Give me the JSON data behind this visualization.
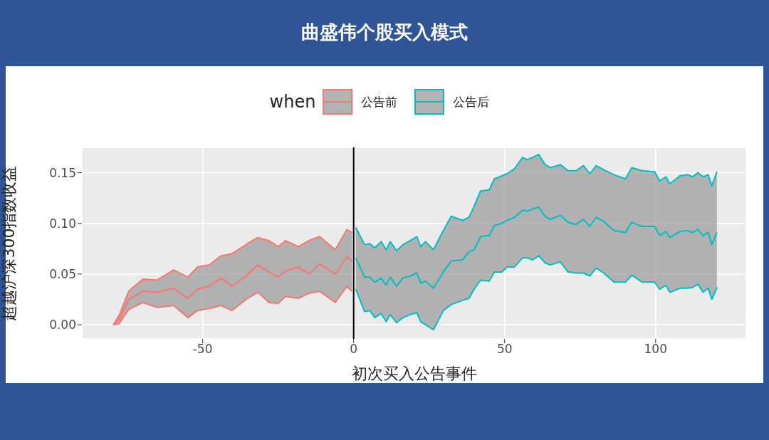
{
  "chart_data": {
    "type": "line",
    "title": "曲盛伟个股买入模式",
    "xlabel": "初次买入公告事件",
    "ylabel": "超越沪深300指数收益",
    "legend_title": "when",
    "legend": "top",
    "grid": true,
    "marker": "none",
    "line_style": "solid",
    "xlim": [
      -90,
      130
    ],
    "xticks": [
      -50,
      0,
      50,
      100
    ],
    "ylim": [
      -0.014,
      0.175
    ],
    "yticks": [
      {
        "value": 0,
        "label": "0.00"
      },
      {
        "value": 0.05,
        "label": "0.05"
      },
      {
        "value": 0.1,
        "label": "0.10"
      },
      {
        "value": 0.15,
        "label": "0.15"
      }
    ],
    "ref_lines": [
      {
        "axis": "x",
        "value": 0,
        "color": "#000000"
      }
    ],
    "series": [
      {
        "name": "公告前",
        "color": "#f8766d",
        "x": [
          -79.6,
          -77.7,
          -74.5,
          -69.8,
          -65.1,
          -59.6,
          -54.9,
          -51.7,
          -47.8,
          -43.9,
          -40.3,
          -35.2,
          -31.7,
          -28.1,
          -25.0,
          -22.6,
          -18.3,
          -14.8,
          -11.3,
          -6.1,
          -2.2,
          -0.6
        ],
        "values": [
          0,
          0.005,
          0.025,
          0.033,
          0.032,
          0.036,
          0.026,
          0.035,
          0.038,
          0.046,
          0.038,
          0.049,
          0.059,
          0.052,
          0.047,
          0.053,
          0.057,
          0.05,
          0.06,
          0.05,
          0.067,
          0.063
        ],
        "upper": [
          0,
          0.009,
          0.033,
          0.045,
          0.044,
          0.054,
          0.047,
          0.057,
          0.059,
          0.068,
          0.07,
          0.08,
          0.086,
          0.083,
          0.077,
          0.083,
          0.077,
          0.083,
          0.087,
          0.074,
          0.094,
          0.091
        ],
        "lower": [
          0,
          0.001,
          0.015,
          0.022,
          0.017,
          0.019,
          0.007,
          0.014,
          0.016,
          0.019,
          0.014,
          0.026,
          0.032,
          0.022,
          0.021,
          0.028,
          0.026,
          0.031,
          0.033,
          0.022,
          0.038,
          0.033
        ]
      },
      {
        "name": "公告后",
        "color": "#00bfc4",
        "x": [
          0.7,
          3.6,
          5.3,
          7.0,
          9.1,
          10.8,
          12.1,
          14.2,
          16.3,
          18.8,
          20.9,
          22.2,
          23.8,
          26.4,
          29.7,
          32.3,
          36.1,
          38.2,
          39.9,
          42.0,
          44.9,
          46.6,
          49.1,
          50.8,
          53.3,
          55.9,
          57.5,
          59.2,
          61.3,
          63.4,
          65.1,
          68.5,
          71.0,
          73.6,
          76.1,
          78.2,
          80.3,
          82.8,
          86.2,
          90.0,
          92.1,
          95.5,
          99.7,
          101.3,
          103.4,
          104.7,
          108.1,
          110.6,
          112.3,
          114.0,
          115.7,
          117.4,
          118.6,
          120.3
        ],
        "values": [
          0.066,
          0.047,
          0.047,
          0.042,
          0.046,
          0.039,
          0.047,
          0.038,
          0.046,
          0.048,
          0.051,
          0.041,
          0.043,
          0.036,
          0.052,
          0.063,
          0.064,
          0.072,
          0.074,
          0.087,
          0.088,
          0.098,
          0.1,
          0.103,
          0.106,
          0.113,
          0.112,
          0.114,
          0.116,
          0.107,
          0.104,
          0.108,
          0.101,
          0.099,
          0.104,
          0.097,
          0.106,
          0.102,
          0.093,
          0.091,
          0.101,
          0.097,
          0.097,
          0.088,
          0.092,
          0.086,
          0.092,
          0.093,
          0.091,
          0.094,
          0.088,
          0.091,
          0.079,
          0.091
        ],
        "upper": [
          0.096,
          0.079,
          0.08,
          0.076,
          0.082,
          0.074,
          0.082,
          0.073,
          0.079,
          0.083,
          0.087,
          0.077,
          0.082,
          0.074,
          0.093,
          0.107,
          0.103,
          0.106,
          0.117,
          0.132,
          0.133,
          0.144,
          0.147,
          0.149,
          0.154,
          0.165,
          0.163,
          0.165,
          0.168,
          0.158,
          0.155,
          0.158,
          0.152,
          0.152,
          0.157,
          0.149,
          0.157,
          0.153,
          0.148,
          0.144,
          0.155,
          0.152,
          0.151,
          0.142,
          0.146,
          0.139,
          0.147,
          0.148,
          0.146,
          0.15,
          0.146,
          0.148,
          0.137,
          0.151
        ],
        "lower": [
          0.035,
          0.013,
          0.014,
          0.007,
          0.011,
          0.003,
          0.01,
          0.002,
          0.007,
          0.01,
          0.012,
          0.003,
          0.0,
          -0.005,
          0.014,
          0.02,
          0.024,
          0.026,
          0.035,
          0.044,
          0.043,
          0.052,
          0.052,
          0.057,
          0.057,
          0.066,
          0.066,
          0.064,
          0.068,
          0.061,
          0.059,
          0.062,
          0.052,
          0.051,
          0.051,
          0.048,
          0.056,
          0.051,
          0.042,
          0.042,
          0.049,
          0.042,
          0.042,
          0.035,
          0.039,
          0.032,
          0.036,
          0.036,
          0.037,
          0.04,
          0.032,
          0.036,
          0.025,
          0.037
        ]
      },
      {
        "type": "line",
        "color": "#f8766d",
        "x": [
          -79.6,
          -77.7,
          -74.5,
          -69.8,
          -65.1,
          -59.6,
          -54.9,
          -51.7,
          -47.8,
          -43.9,
          -40.3,
          -35.2,
          -31.7,
          -28.1,
          -25.0,
          -22.6,
          -18.3,
          -14.8,
          -11.3,
          -6.1,
          -2.2,
          -0.6
        ],
        "values": [
          0,
          0.009,
          0.033,
          0.045,
          0.044,
          0.054,
          0.047,
          0.057,
          0.059,
          0.068,
          0.07,
          0.08,
          0.086,
          0.083,
          0.077,
          0.083,
          0.077,
          0.083,
          0.087,
          0.074,
          0.094,
          0.091
        ]
      },
      {
        "type": "line",
        "color": "#f8766d",
        "x": [
          -79.6,
          -77.7,
          -74.5,
          -69.8,
          -65.1,
          -59.6,
          -54.9,
          -51.7,
          -47.8,
          -43.9,
          -40.3,
          -35.2,
          -31.7,
          -28.1,
          -25.0,
          -22.6,
          -18.3,
          -14.8,
          -11.3,
          -6.1,
          -2.2,
          -0.6
        ],
        "values": [
          0,
          0.001,
          0.015,
          0.022,
          0.017,
          0.019,
          0.007,
          0.014,
          0.016,
          0.019,
          0.014,
          0.026,
          0.032,
          0.022,
          0.021,
          0.028,
          0.026,
          0.031,
          0.033,
          0.022,
          0.038,
          0.033
        ]
      },
      {
        "type": "line",
        "color": "#00bfc4",
        "x": [
          0.7,
          3.6,
          5.3,
          7.0,
          9.1,
          10.8,
          12.1,
          14.2,
          16.3,
          18.8,
          20.9,
          22.2,
          23.8,
          26.4,
          29.7,
          32.3,
          36.1,
          38.2,
          39.9,
          42.0,
          44.9,
          46.6,
          49.1,
          50.8,
          53.3,
          55.9,
          57.5,
          59.2,
          61.3,
          63.4,
          65.1,
          68.5,
          71.0,
          73.6,
          76.1,
          78.2,
          80.3,
          82.8,
          86.2,
          90.0,
          92.1,
          95.5,
          99.7,
          101.3,
          103.4,
          104.7,
          108.1,
          110.6,
          112.3,
          114.0,
          115.7,
          117.4,
          118.6,
          120.3
        ],
        "values": [
          0.096,
          0.079,
          0.08,
          0.076,
          0.082,
          0.074,
          0.082,
          0.073,
          0.079,
          0.083,
          0.087,
          0.077,
          0.082,
          0.074,
          0.093,
          0.107,
          0.103,
          0.106,
          0.117,
          0.132,
          0.133,
          0.144,
          0.147,
          0.149,
          0.154,
          0.165,
          0.163,
          0.165,
          0.168,
          0.158,
          0.155,
          0.158,
          0.152,
          0.152,
          0.157,
          0.149,
          0.157,
          0.153,
          0.148,
          0.144,
          0.155,
          0.152,
          0.151,
          0.142,
          0.146,
          0.139,
          0.147,
          0.148,
          0.146,
          0.15,
          0.146,
          0.148,
          0.137,
          0.151
        ]
      },
      {
        "type": "line",
        "color": "#00bfc4",
        "x": [
          0.7,
          3.6,
          5.3,
          7.0,
          9.1,
          10.8,
          12.1,
          14.2,
          16.3,
          18.8,
          20.9,
          22.2,
          23.8,
          26.4,
          29.7,
          32.3,
          36.1,
          38.2,
          39.9,
          42.0,
          44.9,
          46.6,
          49.1,
          50.8,
          53.3,
          55.9,
          57.5,
          59.2,
          61.3,
          63.4,
          65.1,
          68.5,
          71.0,
          73.6,
          76.1,
          78.2,
          80.3,
          82.8,
          86.2,
          90.0,
          92.1,
          95.5,
          99.7,
          101.3,
          103.4,
          104.7,
          108.1,
          110.6,
          112.3,
          114.0,
          115.7,
          117.4,
          118.6,
          120.3
        ],
        "values": [
          0.035,
          0.013,
          0.014,
          0.007,
          0.011,
          0.003,
          0.01,
          0.002,
          0.007,
          0.01,
          0.012,
          0.003,
          0.0,
          -0.005,
          0.014,
          0.02,
          0.024,
          0.026,
          0.035,
          0.044,
          0.043,
          0.052,
          0.052,
          0.057,
          0.057,
          0.066,
          0.066,
          0.064,
          0.068,
          0.061,
          0.059,
          0.062,
          0.052,
          0.051,
          0.051,
          0.048,
          0.056,
          0.051,
          0.042,
          0.042,
          0.049,
          0.042,
          0.042,
          0.035,
          0.039,
          0.032,
          0.036,
          0.036,
          0.037,
          0.04,
          0.032,
          0.036,
          0.025,
          0.037
        ]
      }
    ]
  }
}
